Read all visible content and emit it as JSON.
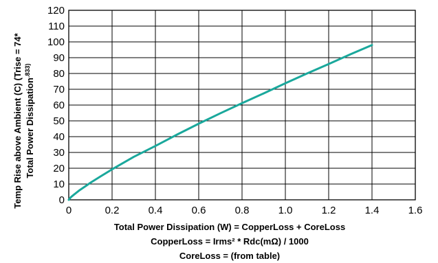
{
  "chart_data": {
    "type": "line",
    "title": "",
    "xlabel_lines": [
      "Total Power Dissipation (W) = CopperLoss + CoreLoss",
      "CopperLoss = Irms² * Rdc(mΩ) / 1000",
      "CoreLoss = (from table)"
    ],
    "ylabel_lines": [
      "Temp Rise above Ambient (C) (Trise = 74*",
      "Total Power Dissipation",
      ".833)"
    ],
    "xlim": [
      0,
      1.6
    ],
    "ylim": [
      0,
      120
    ],
    "x_ticks": [
      "0",
      "0.2",
      "0.4",
      "0.6",
      "0.8",
      "1.0",
      "1.2",
      "1.4",
      "1.6"
    ],
    "y_ticks": [
      "0",
      "10",
      "20",
      "30",
      "40",
      "50",
      "60",
      "70",
      "80",
      "90",
      "100",
      "110",
      "120"
    ],
    "grid": true,
    "legend": "none",
    "line_color": "#1aa89c",
    "series": [
      {
        "x": [
          0,
          0.01,
          0.025,
          0.05,
          0.075,
          0.1,
          0.15,
          0.2,
          0.3,
          0.4,
          0.5,
          0.6,
          0.7,
          0.8,
          0.9,
          1.0,
          1.1,
          1.2,
          1.3,
          1.4
        ],
        "values": [
          0,
          1.7,
          3.4,
          6.1,
          8.4,
          10.8,
          15.1,
          19.3,
          27.2,
          34.1,
          41.3,
          48.2,
          54.8,
          61.2,
          67.4,
          73.8,
          80.0,
          86.0,
          92.1,
          98.0
        ]
      }
    ]
  }
}
